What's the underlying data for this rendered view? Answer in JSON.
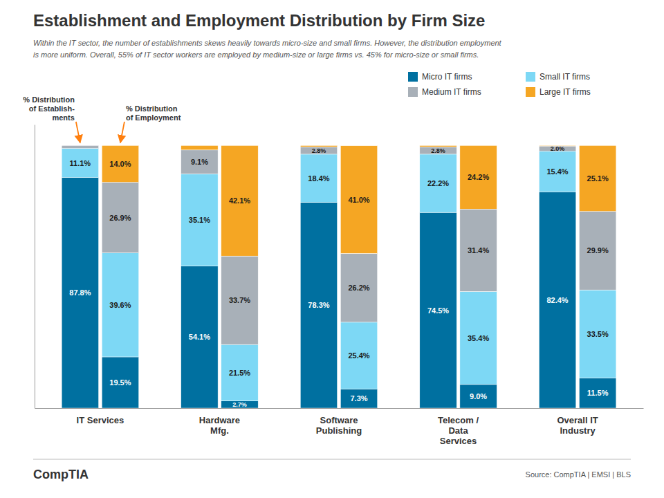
{
  "chart_data": {
    "type": "bar",
    "stacked": true,
    "data_labels": true,
    "legend": "upper right",
    "tick_labels": "x",
    "title": "Establishment and Employment Distribution by Firm Size",
    "subtitle": [
      "Within the IT sector, the number of establishments skews heavily towards micro-size and small firms. However, the distribution employment",
      "is more uniform. Overall, 55% of IT sector workers are employed by medium-size or large firms vs. 45% for micro-size or small firms."
    ],
    "categories": [
      "IT Services",
      "Hardware\nMfg.",
      "Software\nPublishing",
      "Telecom /\nData\nServices",
      "Overall IT\nIndustry"
    ],
    "ylim": [
      0,
      108
    ],
    "groups": [
      {
        "label": "% Distribution\nof Establish-\nments",
        "series": [
          {
            "name": "Micro IT firms",
            "color": "#0070A0",
            "values": [
              87.8,
              54.1,
              78.3,
              74.5,
              82.4
            ],
            "value_labels": [
              "87.8%",
              "54.1%",
              "78.3%",
              "74.5%",
              "82.4%"
            ]
          },
          {
            "name": "Small IT firms",
            "color": "#7DD8F5",
            "values": [
              11.1,
              35.1,
              18.4,
              22.2,
              15.4
            ],
            "value_labels": [
              "11.1%",
              "35.1%",
              "18.4%",
              "22.2%",
              "15.4%"
            ]
          },
          {
            "name": "Medium IT firms",
            "color": "#A8B0B8",
            "values": [
              1.1,
              9.1,
              2.8,
              2.8,
              2.0
            ],
            "value_labels": [
              null,
              "9.1%",
              "2.8%",
              "2.8%",
              "2.0%"
            ]
          },
          {
            "name": "Large IT firms",
            "color": "#F5A623",
            "values": [
              0.0,
              1.7,
              0.5,
              0.5,
              0.2
            ]
          }
        ]
      },
      {
        "label": "% Distribution\nof Employment",
        "series": [
          {
            "color": "#0070A0",
            "values": [
              19.5,
              2.7,
              7.3,
              9.0,
              11.5
            ],
            "value_labels": [
              "19.5%",
              "2.7%",
              "7.3%",
              "9.0%",
              "11.5%"
            ]
          },
          {
            "color": "#7DD8F5",
            "values": [
              39.6,
              21.5,
              25.4,
              35.4,
              33.5
            ],
            "value_labels": [
              "39.6%",
              "21.5%",
              "25.4%",
              "35.4%",
              "33.5%"
            ]
          },
          {
            "color": "#A8B0B8",
            "values": [
              26.9,
              33.7,
              26.2,
              31.4,
              29.9
            ],
            "value_labels": [
              "26.9%",
              "33.7%",
              "26.2%",
              "31.4%",
              "29.9%"
            ]
          },
          {
            "color": "#F5A623",
            "values": [
              14.0,
              42.1,
              41.0,
              24.2,
              25.1
            ],
            "value_labels": [
              "14.0%",
              "42.1%",
              "41.0%",
              "24.2%",
              "25.1%"
            ]
          }
        ]
      }
    ],
    "footer": "CompTIA",
    "source": "Source: CompTIA | EMSI | BLS"
  }
}
